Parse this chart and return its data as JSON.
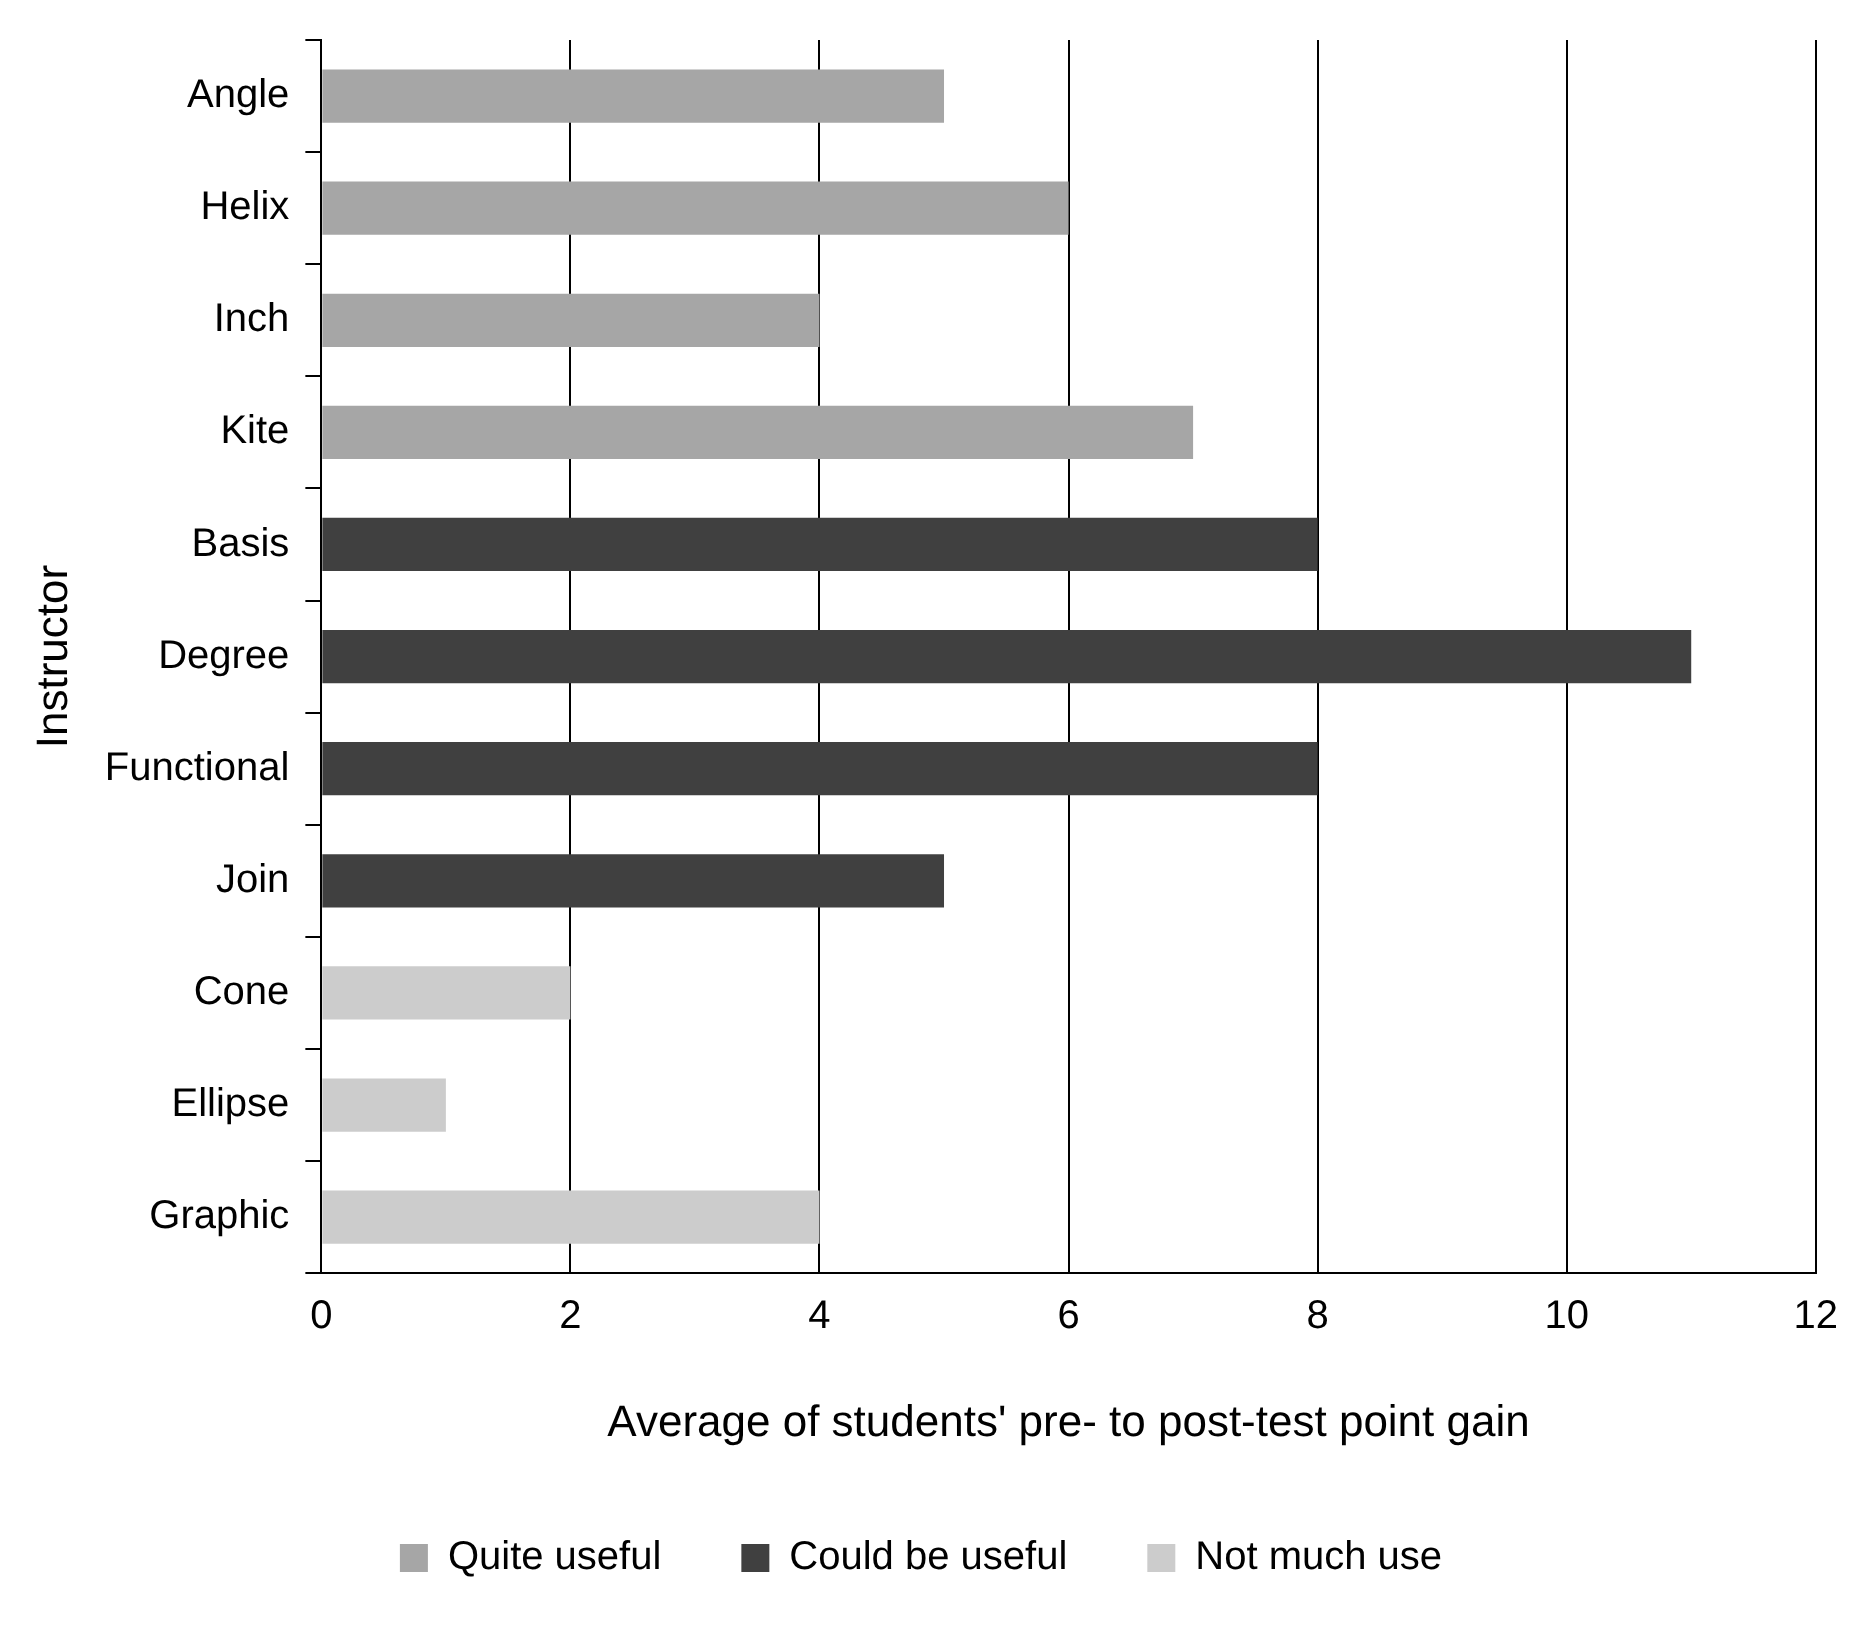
{
  "chart_data": {
    "type": "bar",
    "orientation": "horizontal",
    "stacked": true,
    "xlabel": "Average of students' pre- to post-test point gain",
    "ylabel": "Instructor",
    "categories": [
      "Angle",
      "Helix",
      "Inch",
      "Kite",
      "Basis",
      "Degree",
      "Functional",
      "Join",
      "Cone",
      "Ellipse",
      "Graphic"
    ],
    "series": [
      {
        "name": "Quite useful",
        "color": "#a6a6a6",
        "values": [
          5,
          6,
          4,
          7,
          null,
          null,
          null,
          null,
          null,
          null,
          null
        ]
      },
      {
        "name": "Could be useful",
        "color": "#404040",
        "values": [
          null,
          null,
          null,
          null,
          8,
          11,
          8,
          5,
          null,
          null,
          null
        ]
      },
      {
        "name": "Not much use",
        "color": "#cccccc",
        "values": [
          null,
          null,
          null,
          null,
          null,
          null,
          null,
          null,
          2,
          1,
          4
        ]
      }
    ],
    "xlim": [
      0,
      12
    ],
    "xticks": [
      0,
      2,
      4,
      6,
      8,
      10,
      12
    ],
    "grid": "x",
    "legend": "bottom"
  }
}
